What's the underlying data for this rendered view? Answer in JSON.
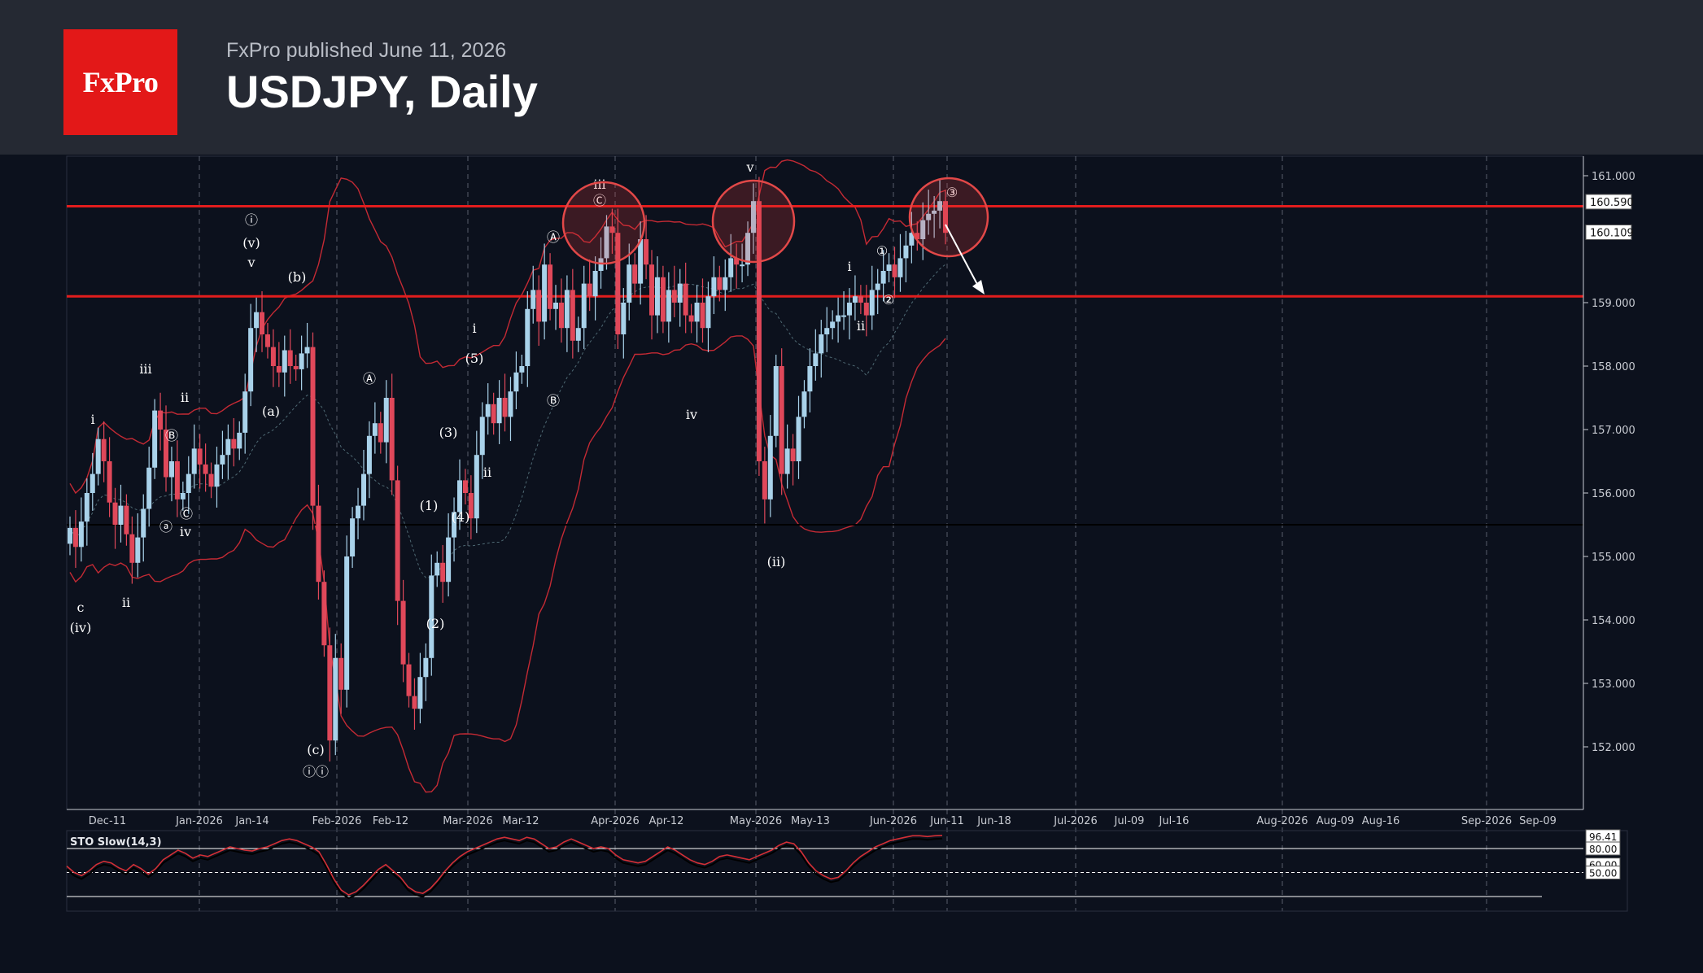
{
  "header": {
    "brand": "FxPro",
    "published": "FxPro published June 11, 2026",
    "title": "USDJPY, Daily"
  },
  "colors": {
    "bull": "#a9d2ea",
    "bear": "#e0485a",
    "band": "#c42a34",
    "level": "#e21d1d",
    "background": "#0c111d"
  },
  "chart_data": [
    {
      "type": "candlestick",
      "instrument": "USDJPY",
      "timeframe": "Daily",
      "ylim": [
        151.0,
        161.3
      ],
      "yticks": [
        "161.000",
        "159.000",
        "158.000",
        "157.000",
        "156.000",
        "155.000",
        "154.000",
        "153.000",
        "152.000"
      ],
      "xticks": [
        "Dec-11",
        "Jan-2026",
        "Jan-14",
        "Feb-2026",
        "Feb-12",
        "Mar-2026",
        "Mar-12",
        "Apr-2026",
        "Apr-12",
        "May-2026",
        "May-13",
        "Jun-2026",
        "Jun-11",
        "Jun-18",
        "Jul-2026",
        "Jul-09",
        "Jul-16",
        "Aug-2026",
        "Aug-09",
        "Aug-16",
        "Sep-2026",
        "Sep-09"
      ],
      "price_tags": [
        "160.590",
        "160.109"
      ],
      "levels": [
        {
          "value": 160.52,
          "color": "#e21d1d"
        },
        {
          "value": 159.1,
          "color": "#e21d1d"
        },
        {
          "value": 155.5,
          "color": "#000000"
        }
      ],
      "closes": [
        155.45,
        155.15,
        155.55,
        156.0,
        156.3,
        156.85,
        156.5,
        155.85,
        155.5,
        155.8,
        155.35,
        154.9,
        155.3,
        155.75,
        156.4,
        157.3,
        157.0,
        156.25,
        156.5,
        155.9,
        156.0,
        156.3,
        156.7,
        156.45,
        156.3,
        156.1,
        156.45,
        156.6,
        156.85,
        156.7,
        156.95,
        157.6,
        158.6,
        158.85,
        158.5,
        158.3,
        158.0,
        157.9,
        158.25,
        158.0,
        157.95,
        158.2,
        158.3,
        155.8,
        154.6,
        153.6,
        152.1,
        153.4,
        152.9,
        155.0,
        155.6,
        155.8,
        156.3,
        156.9,
        157.1,
        156.8,
        157.5,
        156.2,
        154.3,
        153.3,
        152.8,
        152.6,
        153.1,
        153.4,
        154.7,
        154.9,
        154.6,
        155.3,
        155.7,
        156.2,
        156.0,
        155.6,
        156.6,
        157.2,
        157.4,
        157.1,
        157.5,
        157.2,
        157.6,
        157.9,
        158.0,
        158.9,
        159.2,
        158.7,
        159.6,
        158.9,
        159.0,
        158.6,
        159.2,
        158.4,
        158.6,
        159.3,
        159.1,
        159.5,
        159.7,
        160.2,
        160.1,
        158.5,
        159.0,
        159.6,
        159.3,
        160.0,
        159.6,
        158.8,
        159.4,
        158.7,
        159.2,
        159.0,
        159.3,
        158.8,
        158.7,
        159.0,
        158.6,
        159.1,
        159.4,
        159.2,
        159.4,
        159.7,
        159.6,
        159.6,
        160.1,
        160.6,
        156.5,
        155.9,
        156.9,
        158.0,
        156.3,
        156.7,
        156.5,
        157.2,
        157.6,
        158.0,
        158.2,
        158.5,
        158.6,
        158.7,
        158.8,
        158.8,
        159.0,
        159.1,
        159.0,
        158.8,
        159.2,
        159.3,
        159.5,
        159.6,
        159.4,
        159.7,
        159.9,
        160.1,
        160.0,
        160.3,
        160.4,
        160.45,
        160.6,
        160.1
      ],
      "indicator": {
        "name": "STO Slow(14,3)",
        "type": "line",
        "levels": [
          80,
          50,
          20
        ],
        "tags": [
          "96.41",
          "80.00",
          "60.00",
          "50.00"
        ],
        "last_value": 96.41,
        "values": [
          58,
          50,
          46,
          52,
          60,
          64,
          62,
          56,
          52,
          60,
          55,
          48,
          55,
          66,
          72,
          78,
          74,
          68,
          72,
          70,
          74,
          78,
          82,
          80,
          78,
          77,
          80,
          82,
          86,
          90,
          92,
          90,
          86,
          82,
          76,
          60,
          42,
          28,
          22,
          26,
          34,
          44,
          54,
          60,
          52,
          44,
          32,
          26,
          24,
          30,
          40,
          52,
          62,
          70,
          76,
          80,
          84,
          88,
          92,
          94,
          92,
          90,
          94,
          92,
          86,
          80,
          82,
          88,
          92,
          88,
          84,
          80,
          82,
          80,
          72,
          66,
          64,
          62,
          64,
          70,
          76,
          82,
          78,
          72,
          66,
          62,
          60,
          64,
          70,
          72,
          70,
          68,
          66,
          70,
          74,
          78,
          84,
          88,
          86,
          76,
          62,
          52,
          46,
          42,
          44,
          52,
          62,
          70,
          76,
          82,
          86,
          90,
          92,
          94,
          96,
          96,
          95,
          96,
          96.41
        ]
      },
      "annotations": [
        "ⓘ",
        "(v)",
        "v",
        "(b)",
        "i",
        "iii",
        "ⓐ",
        "(a)",
        "ii",
        "c",
        "(iv)",
        "ii",
        "iv",
        "(c)",
        "ⓘⓘ",
        "Ⓐ",
        "Ⓑ",
        "Ⓒ",
        "(1)",
        "(2)",
        "(3)",
        "(4)",
        "(5)",
        "i",
        "ii",
        "iii",
        "Ⓐ",
        "Ⓑ",
        "Ⓒ",
        "iv",
        "v",
        "(ii)",
        "i",
        "ii",
        "①",
        "②",
        "③"
      ]
    }
  ]
}
